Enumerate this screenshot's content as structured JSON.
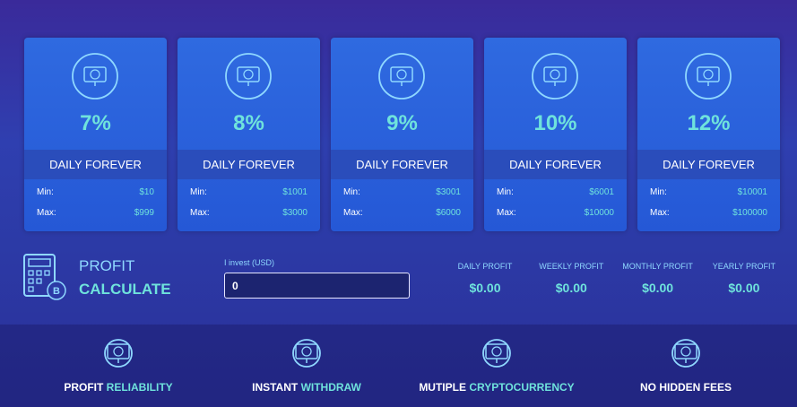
{
  "plans": [
    {
      "rate": "7%",
      "label": "DAILY FOREVER",
      "rows": [
        {
          "label": "Min:",
          "value": "$10"
        },
        {
          "label": "Max:",
          "value": "$999"
        }
      ]
    },
    {
      "rate": "8%",
      "label": "DAILY FOREVER",
      "rows": [
        {
          "label": "Min:",
          "value": "$1001"
        },
        {
          "label": "Max:",
          "value": "$3000"
        }
      ]
    },
    {
      "rate": "9%",
      "label": "DAILY FOREVER",
      "rows": [
        {
          "label": "Min:",
          "value": "$3001"
        },
        {
          "label": "Max:",
          "value": "$6000"
        }
      ]
    },
    {
      "rate": "10%",
      "label": "DAILY FOREVER",
      "rows": [
        {
          "label": "Min:",
          "value": "$6001"
        },
        {
          "label": "Max:",
          "value": "$10000"
        }
      ]
    },
    {
      "rate": "12%",
      "label": "DAILY FOREVER",
      "rows": [
        {
          "label": "Min:",
          "value": "$10001"
        },
        {
          "label": "Max:",
          "value": "$100000"
        }
      ]
    }
  ],
  "calculator": {
    "title": "PROFIT",
    "subtitle": "CALCULATE",
    "input_label": "I invest (USD)",
    "input_value": "0",
    "results": [
      {
        "label": "DAILY PROFIT",
        "value": "$0.00"
      },
      {
        "label": "WEEKLY PROFIT",
        "value": "$0.00"
      },
      {
        "label": "MONTHLY PROFIT",
        "value": "$0.00"
      },
      {
        "label": "YEARLY PROFIT",
        "value": "$0.00"
      }
    ]
  },
  "features": [
    {
      "text": "PROFIT",
      "highlight": "RELIABILITY"
    },
    {
      "text": "INSTANT",
      "highlight": "WITHDRAW"
    },
    {
      "text": "MUTIPLE",
      "highlight": "CRYPTOCURRENCY"
    },
    {
      "text": "NO HIDDEN FEES"
    }
  ]
}
